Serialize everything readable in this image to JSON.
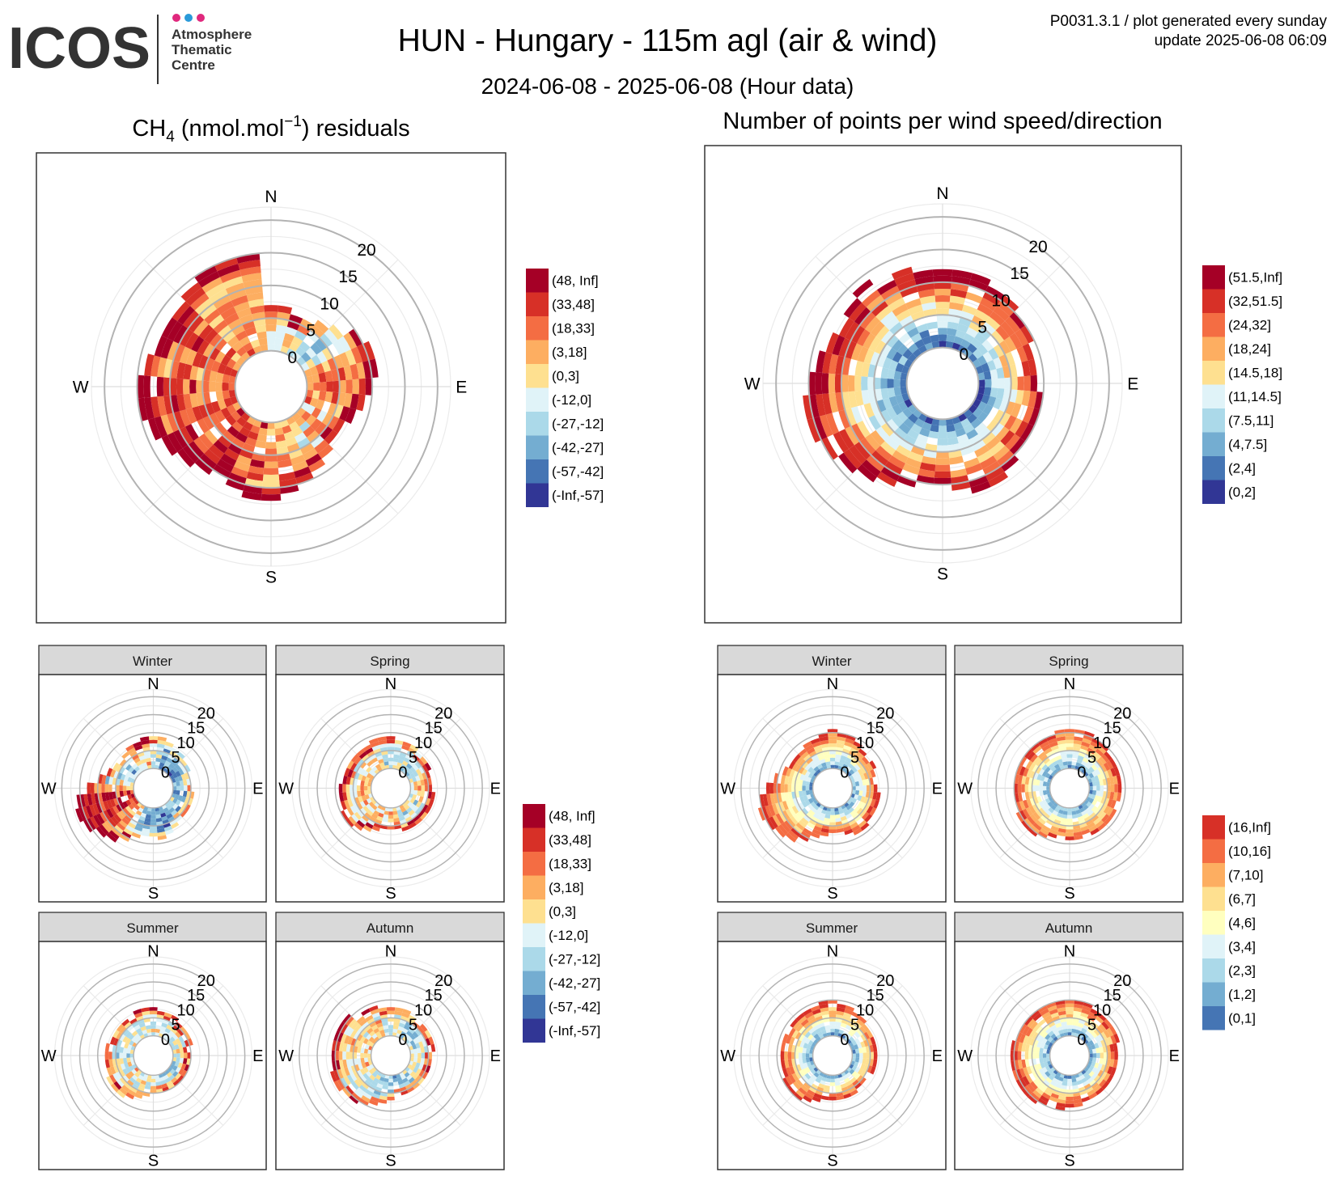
{
  "header": {
    "logo_text": "ICOS",
    "logo_sub": [
      "Atmosphere",
      "Thematic",
      "Centre"
    ],
    "logo_dot_colors": [
      "#e0287d",
      "#2a9ad9",
      "#e0287d"
    ],
    "title": "HUN - Hungary - 115m agl (air & wind)",
    "subtitle": "2024-06-08 - 2025-06-08 (Hour data)",
    "meta_line1": "P0031.3.1 / plot generated every sunday",
    "meta_line2": "update  2025-06-08 06:09"
  },
  "panels": {
    "left_title_species": "CH",
    "left_title_sub": "4",
    "left_title_unit": " (nmol.mol",
    "left_title_sup": "−1",
    "left_title_end": ") residuals",
    "right_title": "Number of points per wind speed/direction"
  },
  "compass": {
    "n": "N",
    "e": "E",
    "s": "S",
    "w": "W"
  },
  "speed_ticks": [
    "0",
    "5",
    "10",
    "15",
    "20"
  ],
  "seasons": [
    "Winter",
    "Spring",
    "Summer",
    "Autumn"
  ],
  "legends": {
    "residuals": {
      "labels": [
        "(48, Inf]",
        "(33,48]",
        "(18,33]",
        "(3,18]",
        "(0,3]",
        "(-12,0]",
        "(-27,-12]",
        "(-42,-27]",
        "(-57,-42]",
        "(-Inf,-57]"
      ],
      "colors": [
        "#a50026",
        "#d73027",
        "#f46d43",
        "#fdae61",
        "#fee090",
        "#e0f3f8",
        "#abd9e9",
        "#74add1",
        "#4575b4",
        "#313695"
      ]
    },
    "count_main": {
      "labels": [
        "(51.5,Inf]",
        "(32,51.5]",
        "(24,32]",
        "(18,24]",
        "(14.5,18]",
        "(11,14.5]",
        "(7.5,11]",
        "(4,7.5]",
        "(2,4]",
        "(0,2]"
      ],
      "colors": [
        "#a50026",
        "#d73027",
        "#f46d43",
        "#fdae61",
        "#fee090",
        "#e0f3f8",
        "#abd9e9",
        "#74add1",
        "#4575b4",
        "#313695"
      ]
    },
    "count_season": {
      "labels": [
        "(16,Inf]",
        "(10,16]",
        "(7,10]",
        "(6,7]",
        "(4,6]",
        "(3,4]",
        "(2,3]",
        "(1,2]",
        "(0,1]"
      ],
      "colors": [
        "#d73027",
        "#f46d43",
        "#fdae61",
        "#fee090",
        "#ffffbf",
        "#e0f3f8",
        "#abd9e9",
        "#74add1",
        "#4575b4"
      ]
    }
  },
  "chart_data": [
    {
      "type": "heatmap",
      "kind": "polar wind rose",
      "title": "CH4 (nmol.mol-1) residuals",
      "radial_axis": "wind speed",
      "radial_range": [
        0,
        22
      ],
      "radial_ticks": [
        0,
        5,
        10,
        15,
        20
      ],
      "angular_axis": "wind direction",
      "data_note": "wind-direction sectors (every 10 deg) vs wind speed (1 unit bins), cell colour = residual class index into legend",
      "gen": {
        "mode": "res",
        "seed": 11,
        "ext": [
          7,
          7,
          6,
          6,
          7,
          8,
          10,
          11,
          11,
          10,
          9,
          8,
          7,
          7,
          8,
          9,
          10,
          11,
          12,
          12,
          11,
          10,
          11,
          12,
          13,
          14,
          15,
          15,
          14,
          13,
          13,
          13,
          14,
          15,
          15,
          15
        ],
        "base": [
          5,
          4,
          5,
          4,
          4,
          3,
          4,
          6,
          7,
          7,
          6,
          6,
          5,
          6,
          5,
          5,
          5,
          6,
          6,
          7,
          7,
          8,
          8,
          8,
          8,
          7,
          7,
          7,
          6,
          7,
          7,
          7,
          6,
          6,
          6,
          6
        ]
      }
    },
    {
      "type": "heatmap",
      "kind": "polar wind rose",
      "title": "Number of points per wind speed/direction",
      "radial_axis": "wind speed",
      "radial_range": [
        0,
        22
      ],
      "radial_ticks": [
        0,
        5,
        10,
        15,
        20
      ],
      "angular_axis": "wind direction",
      "data_note": "wind-direction sectors (every 10 deg) vs wind speed, cell colour = count class index into legend",
      "gen": {
        "mode": "cnt",
        "seed": 23,
        "ext": [
          12,
          12,
          12,
          11,
          11,
          10,
          10,
          9,
          9,
          9,
          10,
          10,
          10,
          10,
          11,
          12,
          12,
          11,
          10,
          10,
          11,
          12,
          13,
          14,
          15,
          16,
          16,
          15,
          14,
          13,
          13,
          13,
          14,
          13,
          13,
          12
        ]
      }
    },
    {
      "type": "heatmap",
      "kind": "polar wind rose",
      "title": "Winter residuals",
      "radial_ticks": [
        0,
        5,
        10,
        15,
        20
      ],
      "gen": {
        "mode": "res",
        "seed": 31,
        "ext": [
          9,
          9,
          8,
          7,
          7,
          6,
          6,
          5,
          5,
          5,
          6,
          6,
          6,
          6,
          6,
          7,
          8,
          9,
          8,
          8,
          9,
          11,
          13,
          14,
          16,
          17,
          16,
          13,
          10,
          8,
          7,
          7,
          7,
          8,
          8,
          9
        ],
        "base": [
          4,
          3,
          2,
          2,
          1,
          1,
          2,
          2,
          3,
          3,
          2,
          2,
          3,
          3,
          2,
          2,
          1,
          2,
          2,
          2,
          3,
          5,
          6,
          7,
          8,
          8,
          8,
          6,
          4,
          3,
          3,
          3,
          4,
          5,
          5,
          5
        ]
      }
    },
    {
      "type": "heatmap",
      "kind": "polar wind rose",
      "title": "Spring residuals",
      "radial_ticks": [
        0,
        5,
        10,
        15,
        20
      ],
      "gen": {
        "mode": "res",
        "seed": 37,
        "ext": [
          9,
          9,
          8,
          8,
          7,
          7,
          7,
          6,
          6,
          6,
          7,
          7,
          7,
          7,
          7,
          7,
          7,
          6,
          6,
          6,
          7,
          8,
          9,
          10,
          10,
          9,
          9,
          9,
          8,
          8,
          8,
          8,
          8,
          8,
          9,
          9
        ],
        "base": [
          4,
          4,
          4,
          3,
          3,
          3,
          4,
          4,
          5,
          5,
          5,
          4,
          4,
          4,
          4,
          4,
          4,
          5,
          5,
          5,
          5,
          5,
          5,
          5,
          5,
          5,
          5,
          5,
          5,
          5,
          5,
          5,
          5,
          5,
          5,
          4
        ]
      }
    },
    {
      "type": "heatmap",
      "kind": "polar wind rose",
      "title": "Summer residuals",
      "radial_ticks": [
        0,
        5,
        10,
        15,
        20
      ],
      "gen": {
        "mode": "res",
        "seed": 41,
        "ext": [
          8,
          7,
          7,
          7,
          6,
          6,
          6,
          6,
          5,
          5,
          5,
          5,
          5,
          5,
          5,
          5,
          5,
          5,
          5,
          6,
          7,
          8,
          9,
          9,
          9,
          8,
          8,
          8,
          8,
          7,
          7,
          7,
          7,
          7,
          8,
          8
        ],
        "base": [
          4,
          4,
          4,
          4,
          4,
          4,
          4,
          4,
          4,
          4,
          4,
          4,
          3,
          3,
          3,
          3,
          3,
          4,
          4,
          4,
          4,
          4,
          4,
          5,
          4,
          4,
          4,
          4,
          4,
          4,
          4,
          4,
          4,
          4,
          4,
          4
        ]
      }
    },
    {
      "type": "heatmap",
      "kind": "polar wind rose",
      "title": "Autumn residuals",
      "radial_ticks": [
        0,
        5,
        10,
        15,
        20
      ],
      "gen": {
        "mode": "res",
        "seed": 43,
        "ext": [
          8,
          8,
          8,
          7,
          7,
          7,
          7,
          7,
          7,
          6,
          6,
          6,
          6,
          6,
          6,
          6,
          6,
          6,
          7,
          8,
          9,
          10,
          11,
          11,
          12,
          12,
          11,
          11,
          11,
          11,
          11,
          11,
          10,
          9,
          9,
          8
        ],
        "base": [
          4,
          4,
          4,
          3,
          3,
          3,
          3,
          4,
          4,
          4,
          4,
          4,
          4,
          4,
          4,
          3,
          3,
          3,
          3,
          3,
          3,
          4,
          4,
          4,
          4,
          5,
          5,
          5,
          5,
          5,
          5,
          5,
          5,
          5,
          5,
          4
        ]
      }
    },
    {
      "type": "heatmap",
      "kind": "polar wind rose",
      "title": "Winter counts",
      "radial_ticks": [
        0,
        5,
        10,
        15,
        20
      ],
      "gen": {
        "mode": "cnt",
        "seed": 51,
        "ext": [
          11,
          11,
          10,
          9,
          8,
          8,
          8,
          7,
          7,
          7,
          8,
          8,
          8,
          8,
          9,
          9,
          8,
          7,
          7,
          8,
          9,
          11,
          13,
          14,
          15,
          16,
          15,
          13,
          11,
          9,
          8,
          8,
          8,
          9,
          9,
          10
        ]
      }
    },
    {
      "type": "heatmap",
      "kind": "polar wind rose",
      "title": "Spring counts",
      "radial_ticks": [
        0,
        5,
        10,
        15,
        20
      ],
      "gen": {
        "mode": "cnt",
        "seed": 53,
        "ext": [
          11,
          11,
          11,
          10,
          10,
          9,
          9,
          9,
          9,
          9,
          9,
          9,
          9,
          9,
          9,
          9,
          9,
          9,
          9,
          9,
          9,
          10,
          11,
          11,
          11,
          10,
          10,
          10,
          10,
          10,
          10,
          10,
          10,
          10,
          10,
          11
        ]
      }
    },
    {
      "type": "heatmap",
      "kind": "polar wind rose",
      "title": "Summer counts",
      "radial_ticks": [
        0,
        5,
        10,
        15,
        20
      ],
      "gen": {
        "mode": "cnt",
        "seed": 57,
        "ext": [
          10,
          9,
          9,
          8,
          8,
          8,
          8,
          7,
          7,
          7,
          7,
          7,
          6,
          6,
          6,
          7,
          7,
          7,
          7,
          7,
          8,
          9,
          10,
          10,
          10,
          9,
          9,
          9,
          9,
          9,
          9,
          9,
          9,
          9,
          9,
          10
        ]
      }
    },
    {
      "type": "heatmap",
      "kind": "polar wind rose",
      "title": "Autumn counts",
      "radial_ticks": [
        0,
        5,
        10,
        15,
        20
      ],
      "gen": {
        "mode": "cnt",
        "seed": 59,
        "ext": [
          10,
          10,
          10,
          9,
          9,
          9,
          9,
          9,
          8,
          8,
          8,
          8,
          8,
          8,
          8,
          8,
          8,
          9,
          9,
          10,
          10,
          10,
          11,
          11,
          11,
          11,
          11,
          11,
          11,
          10,
          10,
          10,
          10,
          10,
          10,
          10
        ]
      }
    }
  ]
}
